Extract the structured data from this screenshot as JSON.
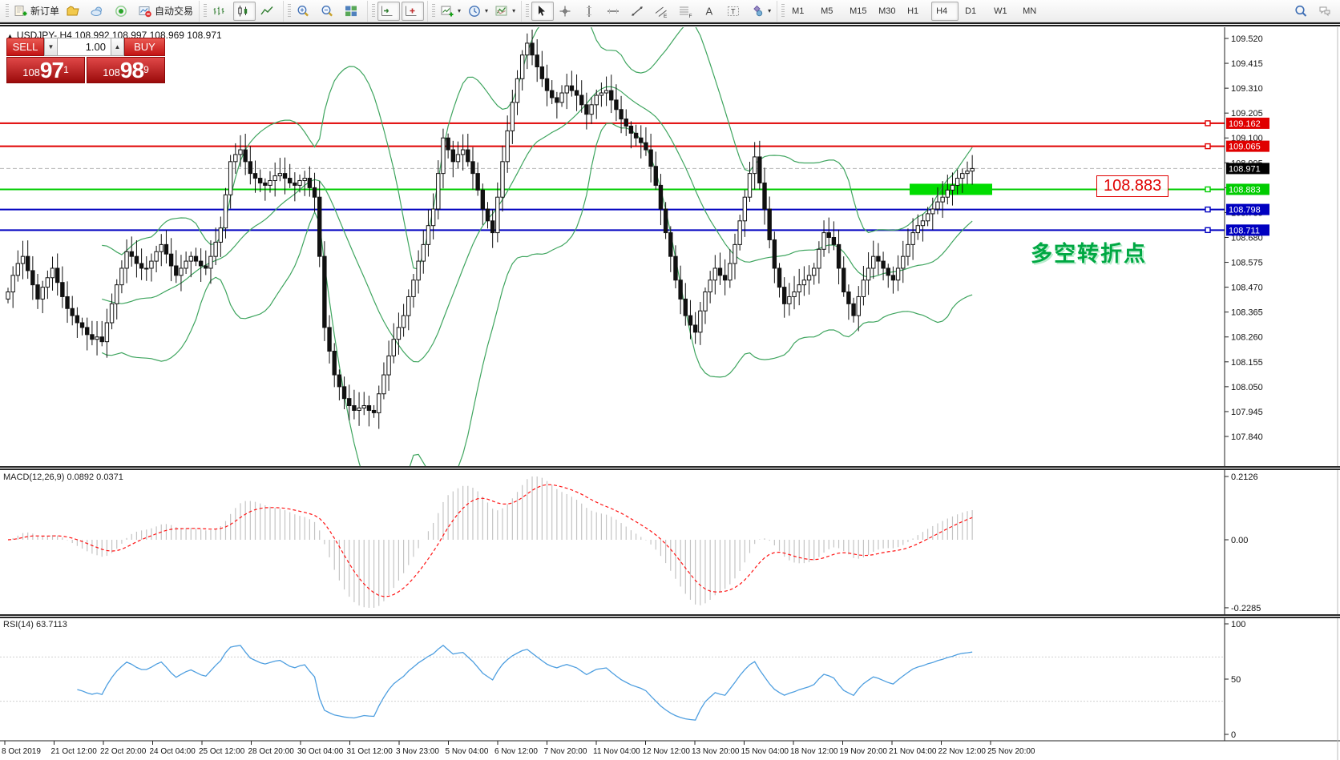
{
  "toolbar": {
    "groups": [
      {
        "items": [
          {
            "name": "new-order-button",
            "icon": "new-order-icon",
            "label": "新订单"
          },
          {
            "name": "profiles-button",
            "icon": "folder-icon"
          },
          {
            "name": "data-window-button",
            "icon": "cloud-icon"
          },
          {
            "name": "news-button",
            "icon": "sound-icon"
          },
          {
            "name": "autotrading-button",
            "icon": "autotrading-icon",
            "label": "自动交易"
          }
        ]
      },
      {
        "items": [
          {
            "name": "bar-chart-button",
            "icon": "bar-chart-icon"
          },
          {
            "name": "candlestick-button",
            "icon": "candlestick-icon",
            "active": true
          },
          {
            "name": "line-chart-button",
            "icon": "line-chart-icon"
          }
        ]
      },
      {
        "items": [
          {
            "name": "zoom-in-button",
            "icon": "zoom-in-icon"
          },
          {
            "name": "zoom-out-button",
            "icon": "zoom-out-icon"
          },
          {
            "name": "tile-windows-button",
            "icon": "tile-windows-icon"
          }
        ]
      },
      {
        "items": [
          {
            "name": "auto-scroll-button",
            "icon": "auto-scroll-icon",
            "active": true
          },
          {
            "name": "chart-shift-button",
            "icon": "chart-shift-icon",
            "active": true
          }
        ]
      },
      {
        "items": [
          {
            "name": "new-chart-button",
            "icon": "new-chart-icon",
            "dropdown": true
          },
          {
            "name": "period-button",
            "icon": "clock-icon",
            "dropdown": true
          },
          {
            "name": "indicators-button",
            "icon": "indicators-icon",
            "dropdown": true
          }
        ]
      },
      {
        "items": [
          {
            "name": "cursor-button",
            "icon": "cursor-icon",
            "active": true
          },
          {
            "name": "crosshair-button",
            "icon": "crosshair-icon"
          },
          {
            "name": "vertical-line-button",
            "icon": "vline-icon"
          },
          {
            "name": "horizontal-line-button",
            "icon": "hline-icon"
          },
          {
            "name": "trendline-button",
            "icon": "trendline-icon"
          },
          {
            "name": "equidistant-channel-button",
            "icon": "channel-icon"
          },
          {
            "name": "fibonacci-button",
            "icon": "fibo-icon"
          },
          {
            "name": "text-button",
            "icon": "text-icon"
          },
          {
            "name": "text-label-button",
            "icon": "text-label-icon"
          },
          {
            "name": "shapes-button",
            "icon": "shapes-icon",
            "dropdown": true
          }
        ]
      },
      {
        "items": [
          {
            "name": "timeframe-m1",
            "tf": "M1"
          },
          {
            "name": "timeframe-m5",
            "tf": "M5"
          },
          {
            "name": "timeframe-m15",
            "tf": "M15"
          },
          {
            "name": "timeframe-m30",
            "tf": "M30"
          },
          {
            "name": "timeframe-h1",
            "tf": "H1"
          },
          {
            "name": "timeframe-h4",
            "tf": "H4",
            "active": true
          },
          {
            "name": "timeframe-d1",
            "tf": "D1"
          },
          {
            "name": "timeframe-w1",
            "tf": "W1"
          },
          {
            "name": "timeframe-mn",
            "tf": "MN"
          }
        ]
      }
    ],
    "right_items": [
      {
        "name": "search-button",
        "icon": "search-icon"
      },
      {
        "name": "chat-button",
        "icon": "chat-icon"
      }
    ]
  },
  "chart_header": {
    "title": "USDJPY-,H4  108.992 108.997 108.969 108.971"
  },
  "trade_panel": {
    "sell_label": "SELL",
    "buy_label": "BUY",
    "volume": "1.00",
    "sell_price": {
      "small": "108",
      "big": "97",
      "sup": "1"
    },
    "buy_price": {
      "small": "108",
      "big": "98",
      "sup": "9"
    }
  },
  "annotations": {
    "price_label": "108.883",
    "turning_point": "多空转折点"
  },
  "macd": {
    "label": "MACD(12,26,9) 0.0892 0.0371"
  },
  "rsi": {
    "label": "RSI(14) 63.7113"
  },
  "colors": {
    "level_red": "#e00000",
    "level_green": "#00cc00",
    "level_blue": "#0000c0",
    "current_label": "#000000",
    "band_green": "#3fa55f",
    "macd_hist": "#c4c4c4",
    "macd_signal": "#ff1414",
    "rsi_line": "#4f9fe0",
    "highlight_green": "#00dd00"
  },
  "chart_data": {
    "type": "candlestick",
    "symbol": "USDJPY-",
    "timeframe": "H4",
    "last_ohlc": {
      "open": 108.992,
      "high": 108.997,
      "low": 108.969,
      "close": 108.971
    },
    "current_price": 108.971,
    "closes": [
      108.45,
      108.52,
      108.57,
      108.6,
      108.54,
      108.48,
      108.42,
      108.47,
      108.51,
      108.55,
      108.49,
      108.43,
      108.38,
      108.35,
      108.32,
      108.3,
      108.27,
      108.25,
      108.26,
      108.24,
      108.32,
      108.4,
      108.48,
      108.55,
      108.62,
      108.6,
      108.57,
      108.55,
      108.55,
      108.58,
      108.62,
      108.65,
      108.61,
      108.56,
      108.52,
      108.55,
      108.58,
      108.6,
      108.58,
      108.56,
      108.55,
      108.6,
      108.66,
      108.72,
      108.86,
      109.0,
      109.03,
      109.05,
      109.0,
      108.95,
      108.93,
      108.91,
      108.9,
      108.92,
      108.94,
      108.95,
      108.93,
      108.91,
      108.9,
      108.92,
      108.93,
      108.89,
      108.85,
      108.6,
      108.3,
      108.2,
      108.1,
      108.05,
      108.0,
      107.97,
      107.95,
      107.96,
      107.97,
      107.95,
      107.94,
      108.02,
      108.1,
      108.18,
      108.25,
      108.3,
      108.35,
      108.43,
      108.5,
      108.58,
      108.65,
      108.73,
      108.8,
      108.95,
      109.1,
      109.05,
      109.0,
      109.03,
      109.05,
      109.0,
      108.95,
      108.88,
      108.8,
      108.75,
      108.7,
      108.85,
      109.0,
      109.13,
      109.25,
      109.35,
      109.45,
      109.5,
      109.45,
      109.4,
      109.35,
      109.3,
      109.27,
      109.25,
      109.29,
      109.32,
      109.3,
      109.28,
      109.24,
      109.2,
      109.24,
      109.28,
      109.29,
      109.3,
      109.26,
      109.22,
      109.18,
      109.15,
      109.12,
      109.1,
      109.08,
      109.05,
      108.98,
      108.9,
      108.8,
      108.7,
      108.6,
      108.5,
      108.42,
      108.35,
      108.31,
      108.28,
      108.37,
      108.45,
      108.5,
      108.55,
      108.52,
      108.5,
      108.57,
      108.65,
      108.75,
      108.85,
      108.95,
      109.02,
      108.91,
      108.8,
      108.67,
      108.55,
      108.47,
      108.4,
      108.43,
      108.45,
      108.48,
      108.5,
      108.52,
      108.55,
      108.63,
      108.7,
      108.68,
      108.65,
      108.55,
      108.45,
      108.4,
      108.35,
      108.43,
      108.5,
      108.55,
      108.6,
      108.58,
      108.55,
      108.52,
      108.5,
      108.55,
      108.6,
      108.65,
      108.7,
      108.73,
      108.75,
      108.78,
      108.8,
      108.83,
      108.85,
      108.88,
      108.9,
      108.93,
      108.95,
      108.96,
      108.971
    ],
    "levels": [
      {
        "price": 109.162,
        "color": "red"
      },
      {
        "price": 109.065,
        "color": "red"
      },
      {
        "price": 108.883,
        "color": "green"
      },
      {
        "price": 108.798,
        "color": "blue"
      },
      {
        "price": 108.711,
        "color": "blue"
      }
    ],
    "price_axis": {
      "max": 109.52,
      "min": 107.84,
      "step": 0.105,
      "ticks": [
        "109.520",
        "109.415",
        "109.310",
        "109.205",
        "109.100",
        "108.995",
        "108.890",
        "108.785",
        "108.680",
        "108.575",
        "108.470",
        "108.365",
        "108.260",
        "108.155",
        "108.050",
        "107.945",
        "107.840"
      ]
    },
    "indicators": {
      "bollinger": {
        "period": 20,
        "deviation": 2
      },
      "macd": {
        "fast": 12,
        "slow": 26,
        "signal": 9,
        "value": 0.0892,
        "signal_value": 0.0371,
        "axis": {
          "max": "0.2126",
          "zero": "0.00",
          "min": "-0.2285"
        }
      },
      "rsi": {
        "period": 14,
        "value": 63.7113,
        "axis": {
          "max": "100",
          "mid": "50",
          "min": "0"
        }
      }
    },
    "time_axis": [
      "8 Oct 2019",
      "21 Oct 12:00",
      "22 Oct 20:00",
      "24 Oct 04:00",
      "25 Oct 12:00",
      "28 Oct 20:00",
      "30 Oct 04:00",
      "31 Oct 12:00",
      "3 Nov 23:00",
      "5 Nov 04:00",
      "6 Nov 12:00",
      "7 Nov 20:00",
      "11 Nov 04:00",
      "12 Nov 12:00",
      "13 Nov 20:00",
      "15 Nov 04:00",
      "18 Nov 12:00",
      "19 Nov 20:00",
      "21 Nov 04:00",
      "22 Nov 12:00",
      "25 Nov 20:00"
    ]
  }
}
